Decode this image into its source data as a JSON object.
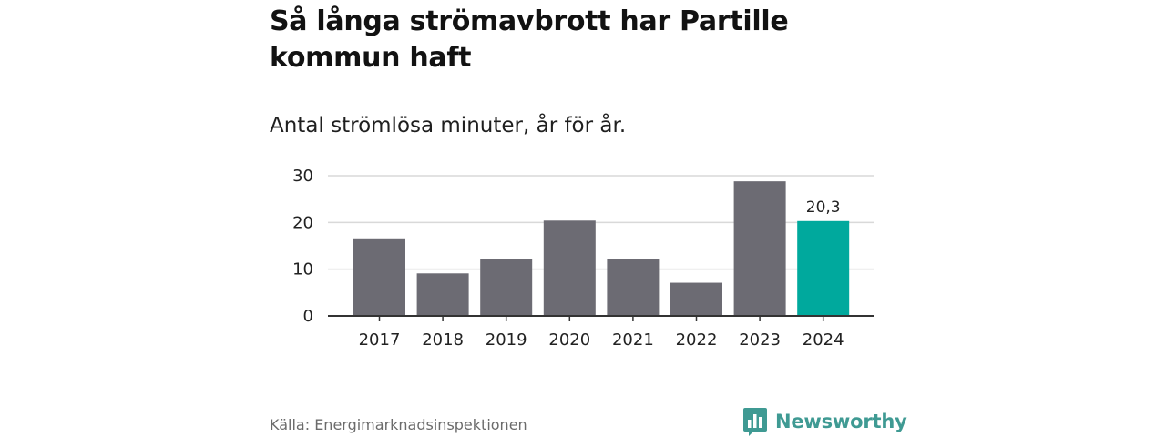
{
  "title": "Så långa strömavbrott har Partille kommun haft",
  "subtitle": "Antal strömlösa minuter, år för år.",
  "source": "Källa: Energimarknadsinspektionen",
  "brand": {
    "name": "Newsworthy",
    "icon": "newsworthy-logo-icon",
    "color": "#3f9a93"
  },
  "colors": {
    "bar": "#6c6b73",
    "highlight": "#00a99d",
    "grid": "#d9d9d9",
    "axis": "#333333"
  },
  "chart_data": {
    "type": "bar",
    "title": "Så långa strömavbrott har Partille kommun haft",
    "subtitle": "Antal strömlösa minuter, år för år.",
    "xlabel": "",
    "ylabel": "",
    "categories": [
      "2017",
      "2018",
      "2019",
      "2020",
      "2021",
      "2022",
      "2023",
      "2024"
    ],
    "values": [
      16.6,
      9.1,
      12.2,
      20.4,
      12.1,
      7.1,
      28.8,
      20.3
    ],
    "highlight_index": 7,
    "data_labels": [
      {
        "index": 7,
        "text": "20,3"
      }
    ],
    "ylim": [
      0,
      30
    ],
    "yticks": [
      0,
      10,
      20,
      30
    ],
    "ytick_labels": [
      "0",
      "10",
      "20",
      "30"
    ],
    "grid": true,
    "legend": "none"
  }
}
